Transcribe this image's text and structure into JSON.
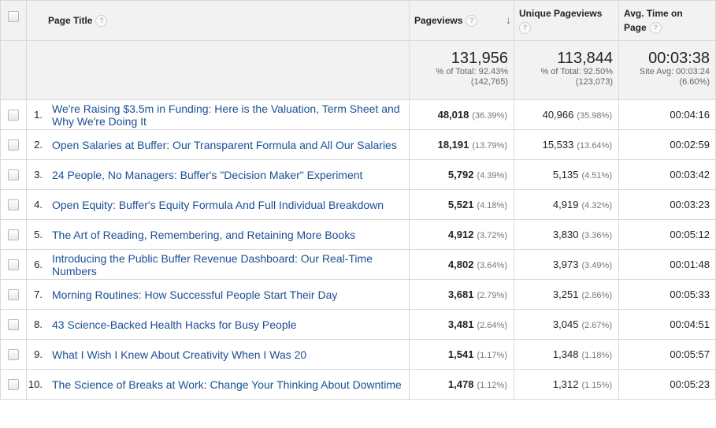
{
  "header": {
    "page_title": "Page Title",
    "pageviews": "Pageviews",
    "unique_pageviews": "Unique Pageviews",
    "avg_time_line1": "Avg. Time on",
    "avg_time_line2": "Page",
    "help_glyph": "?",
    "sort_glyph": "↓"
  },
  "totals": {
    "pageviews": {
      "value": "131,956",
      "line1": "% of Total: 92.43%",
      "line2": "(142,765)"
    },
    "unique_pageviews": {
      "value": "113,844",
      "line1": "% of Total: 92.50%",
      "line2": "(123,073)"
    },
    "avg_time": {
      "value": "00:03:38",
      "line1": "Site Avg: 00:03:24",
      "line2": "(6.60%)"
    }
  },
  "rows": [
    {
      "num": "1.",
      "title": "We're Raising $3.5m in Funding: Here is the Valuation, Term Sheet and Why We're Doing It",
      "pv": "48,018",
      "pv_pct": "(36.39%)",
      "upv": "40,966",
      "upv_pct": "(35.98%)",
      "time": "00:04:16"
    },
    {
      "num": "2.",
      "title": "Open Salaries at Buffer: Our Transparent Formula and All Our Salaries",
      "pv": "18,191",
      "pv_pct": "(13.79%)",
      "upv": "15,533",
      "upv_pct": "(13.64%)",
      "time": "00:02:59"
    },
    {
      "num": "3.",
      "title": "24 People, No Managers: Buffer's \"Decision Maker\" Experiment",
      "pv": "5,792",
      "pv_pct": "(4.39%)",
      "upv": "5,135",
      "upv_pct": "(4.51%)",
      "time": "00:03:42"
    },
    {
      "num": "4.",
      "title": "Open Equity: Buffer's Equity Formula And Full Individual Breakdown",
      "pv": "5,521",
      "pv_pct": "(4.18%)",
      "upv": "4,919",
      "upv_pct": "(4.32%)",
      "time": "00:03:23"
    },
    {
      "num": "5.",
      "title": "The Art of Reading, Remembering, and Retaining More Books",
      "pv": "4,912",
      "pv_pct": "(3.72%)",
      "upv": "3,830",
      "upv_pct": "(3.36%)",
      "time": "00:05:12"
    },
    {
      "num": "6.",
      "title": "Introducing the Public Buffer Revenue Dashboard: Our Real-Time Numbers",
      "pv": "4,802",
      "pv_pct": "(3.64%)",
      "upv": "3,973",
      "upv_pct": "(3.49%)",
      "time": "00:01:48"
    },
    {
      "num": "7.",
      "title": "Morning Routines: How Successful People Start Their Day",
      "pv": "3,681",
      "pv_pct": "(2.79%)",
      "upv": "3,251",
      "upv_pct": "(2.86%)",
      "time": "00:05:33"
    },
    {
      "num": "8.",
      "title": "43 Science-Backed Health Hacks for Busy People",
      "pv": "3,481",
      "pv_pct": "(2.64%)",
      "upv": "3,045",
      "upv_pct": "(2.67%)",
      "time": "00:04:51"
    },
    {
      "num": "9.",
      "title": "What I Wish I Knew About Creativity When I Was 20",
      "pv": "1,541",
      "pv_pct": "(1.17%)",
      "upv": "1,348",
      "upv_pct": "(1.18%)",
      "time": "00:05:57"
    },
    {
      "num": "10.",
      "title": "The Science of Breaks at Work: Change Your Thinking About Downtime",
      "pv": "1,478",
      "pv_pct": "(1.12%)",
      "upv": "1,312",
      "upv_pct": "(1.15%)",
      "time": "00:05:23"
    }
  ],
  "colors": {
    "link": "#1a4f94",
    "header_bg": "#f2f2f2",
    "border": "#d9d9d9",
    "muted": "#777777"
  }
}
